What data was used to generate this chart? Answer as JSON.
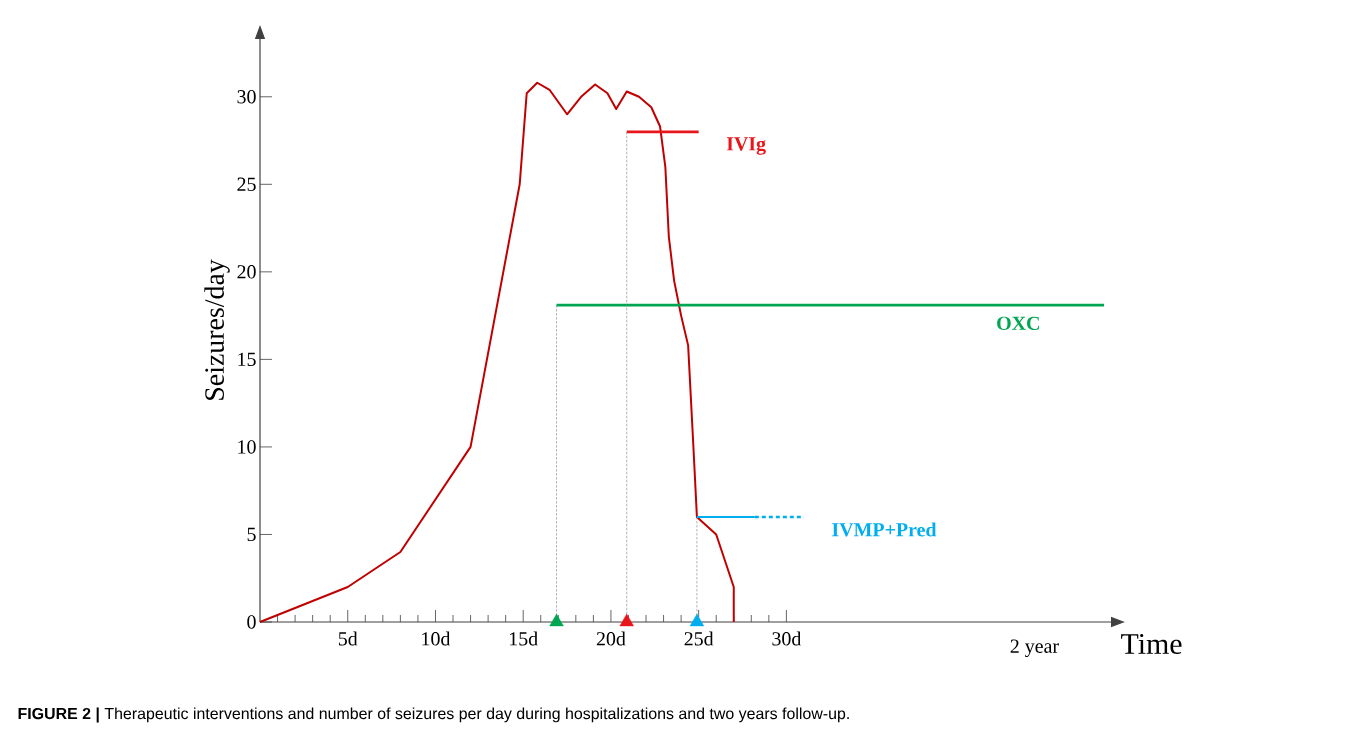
{
  "chart_data": {
    "type": "line",
    "xlabel": "Time",
    "ylabel": "Seizures/day",
    "annotations": [
      "**FIGURE 2 |** Therapeutic interventions and number of seizures per day during hospitalizations and two years follow-up.",
      "2 year"
    ],
    "xlim": [
      0,
      48.5
    ],
    "ylim": [
      0,
      33.3
    ],
    "xticks": [
      {
        "value": 1,
        "label": null
      },
      {
        "value": 2,
        "label": null
      },
      {
        "value": 3,
        "label": null
      },
      {
        "value": 4,
        "label": null
      },
      {
        "value": 5,
        "label": "5d"
      },
      {
        "value": 6,
        "label": null
      },
      {
        "value": 7,
        "label": null
      },
      {
        "value": 8,
        "label": null
      },
      {
        "value": 9,
        "label": null
      },
      {
        "value": 10,
        "label": "10d"
      },
      {
        "value": 11,
        "label": null
      },
      {
        "value": 12,
        "label": null
      },
      {
        "value": 13,
        "label": null
      },
      {
        "value": 14,
        "label": null
      },
      {
        "value": 15,
        "label": "15d"
      },
      {
        "value": 16,
        "label": null
      },
      {
        "value": 17,
        "label": null
      },
      {
        "value": 18,
        "label": null
      },
      {
        "value": 19,
        "label": null
      },
      {
        "value": 20,
        "label": "20d"
      },
      {
        "value": 21,
        "label": null
      },
      {
        "value": 22,
        "label": null
      },
      {
        "value": 23,
        "label": null
      },
      {
        "value": 24,
        "label": null
      },
      {
        "value": 25,
        "label": "25d"
      },
      {
        "value": 26,
        "label": null
      },
      {
        "value": 27,
        "label": null
      },
      {
        "value": 28,
        "label": null
      },
      {
        "value": 29,
        "label": null
      },
      {
        "value": 30,
        "label": "30d"
      }
    ],
    "yticks": [
      0,
      5,
      10,
      15,
      20,
      25,
      30
    ],
    "grid": false,
    "series": [
      {
        "color": "#c00000",
        "x": [
          0,
          5,
          8,
          12,
          14.8,
          15.2,
          15.8,
          16.5,
          17.5,
          18.3,
          19.1,
          19.8,
          20.3,
          20.9,
          21.6,
          22.3,
          22.8,
          23.1,
          23.3,
          23.6,
          24.0,
          24.4,
          24.7,
          24.9,
          26.0,
          27.0,
          27.0
        ],
        "values": [
          0,
          2,
          4,
          10,
          25,
          30.2,
          30.8,
          30.4,
          29.0,
          30.0,
          30.7,
          30.2,
          29.3,
          30.3,
          30.0,
          29.4,
          28.3,
          26,
          22,
          19.5,
          17.5,
          15.8,
          10,
          6,
          5,
          2,
          0
        ]
      },
      {
        "name": "IVIg",
        "color": "#e8161b",
        "x": [
          20.9,
          25.0
        ],
        "values": [
          28,
          28
        ]
      },
      {
        "name": "OXC",
        "color": "#00a651",
        "x": [
          16.9,
          48.1
        ],
        "values": [
          18.1,
          18.1
        ]
      },
      {
        "color": "#00aeef",
        "x": [
          24.9,
          28.2
        ],
        "values": [
          6,
          6
        ]
      },
      {
        "name": "IVMP+Pred",
        "color": "#00aeef",
        "line_style": "dotted",
        "x": [
          28.2,
          31.0
        ],
        "values": [
          6,
          6
        ]
      },
      {
        "color": "#808080",
        "line_style": "dashed",
        "x": [
          16.9,
          16.9
        ],
        "values": [
          18.1,
          0
        ]
      },
      {
        "color": "#808080",
        "line_style": "dashed",
        "x": [
          20.9,
          20.9
        ],
        "values": [
          28,
          0
        ]
      },
      {
        "color": "#808080",
        "line_style": "dashed",
        "x": [
          24.9,
          24.9
        ],
        "values": [
          6,
          0
        ]
      },
      {
        "type": "scatter",
        "marker": "triangle",
        "colors": [
          "#00a651",
          "#e8161b",
          "#00aeef"
        ],
        "x": [
          16.9,
          20.9,
          24.9
        ],
        "values": [
          0,
          0,
          0
        ]
      }
    ]
  }
}
